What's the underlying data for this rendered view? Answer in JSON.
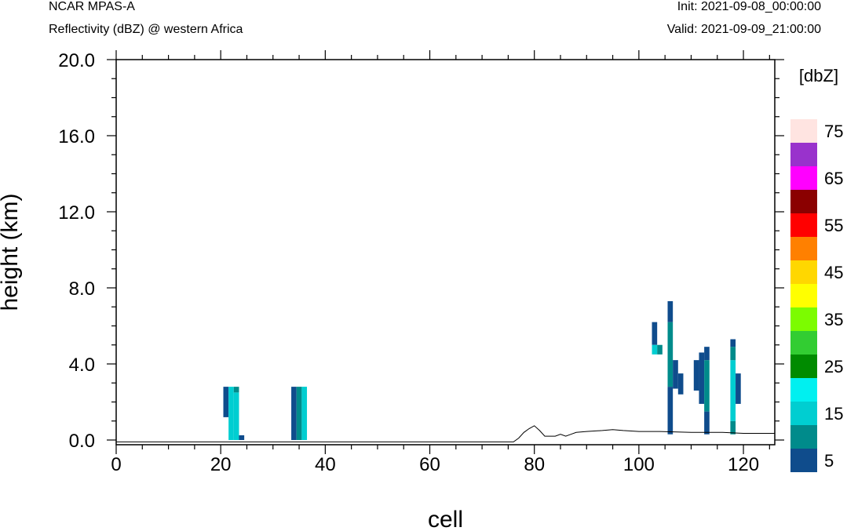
{
  "header": {
    "left_title": "NCAR MPAS-A",
    "left_subtitle": "Reflectivity (dBZ) @ western Africa",
    "right_init": "Init: 2021-09-08_00:00:00",
    "right_valid": "Valid: 2021-09-09_21:00:00"
  },
  "chart_data": {
    "type": "heatmap",
    "xlabel": "cell",
    "ylabel": "height (km)",
    "xlim": [
      0,
      126
    ],
    "ylim": [
      0,
      20
    ],
    "x_ticks": [
      0,
      20,
      40,
      60,
      80,
      100,
      120
    ],
    "y_ticks": [
      "0.0",
      "4.0",
      "8.0",
      "12.0",
      "16.0",
      "20.0"
    ],
    "colorbar": {
      "title": "[dbZ]",
      "levels": [
        5,
        10,
        15,
        20,
        25,
        30,
        35,
        40,
        45,
        50,
        55,
        60,
        65,
        70,
        75
      ],
      "labels": [
        "5",
        "15",
        "25",
        "35",
        "45",
        "55",
        "65",
        "75"
      ],
      "colors": [
        "#0f4c8c",
        "#008b8b",
        "#00ced1",
        "#00f0f0",
        "#008b00",
        "#32cd32",
        "#7cfc00",
        "#ffff00",
        "#ffd700",
        "#ff8000",
        "#ff0000",
        "#8b0000",
        "#ff00ff",
        "#9932cc",
        "#ffe4e1"
      ]
    },
    "cells": [
      {
        "x": 21,
        "y0": 1.2,
        "y1": 2.8,
        "v": 5
      },
      {
        "x": 22,
        "y0": 0.0,
        "y1": 2.8,
        "v": 15
      },
      {
        "x": 23,
        "y0": 0.0,
        "y1": 2.5,
        "v": 15
      },
      {
        "x": 23,
        "y0": 2.5,
        "y1": 2.8,
        "v": 10
      },
      {
        "x": 24,
        "y0": 0.0,
        "y1": 0.25,
        "v": 5
      },
      {
        "x": 34,
        "y0": 0.0,
        "y1": 2.8,
        "v": 5
      },
      {
        "x": 35,
        "y0": 0.0,
        "y1": 2.8,
        "v": 10
      },
      {
        "x": 36,
        "y0": 0.0,
        "y1": 2.8,
        "v": 15
      },
      {
        "x": 103,
        "y0": 5.0,
        "y1": 6.2,
        "v": 5
      },
      {
        "x": 103,
        "y0": 4.5,
        "y1": 5.0,
        "v": 15
      },
      {
        "x": 104,
        "y0": 4.5,
        "y1": 5.0,
        "v": 10
      },
      {
        "x": 106,
        "y0": 0.3,
        "y1": 2.8,
        "v": 5
      },
      {
        "x": 106,
        "y0": 2.8,
        "y1": 6.2,
        "v": 10
      },
      {
        "x": 106,
        "y0": 6.2,
        "y1": 7.3,
        "v": 5
      },
      {
        "x": 107,
        "y0": 2.7,
        "y1": 4.2,
        "v": 5
      },
      {
        "x": 108,
        "y0": 2.4,
        "y1": 3.5,
        "v": 5
      },
      {
        "x": 111,
        "y0": 2.6,
        "y1": 4.2,
        "v": 5
      },
      {
        "x": 112,
        "y0": 1.9,
        "y1": 4.6,
        "v": 5
      },
      {
        "x": 113,
        "y0": 0.3,
        "y1": 1.5,
        "v": 5
      },
      {
        "x": 113,
        "y0": 1.5,
        "y1": 4.2,
        "v": 10
      },
      {
        "x": 113,
        "y0": 4.2,
        "y1": 4.9,
        "v": 5
      },
      {
        "x": 118,
        "y0": 0.3,
        "y1": 1.0,
        "v": 10
      },
      {
        "x": 118,
        "y0": 1.0,
        "y1": 4.2,
        "v": 15
      },
      {
        "x": 118,
        "y0": 4.2,
        "y1": 4.9,
        "v": 10
      },
      {
        "x": 118,
        "y0": 4.9,
        "y1": 5.3,
        "v": 5
      },
      {
        "x": 119,
        "y0": 1.9,
        "y1": 3.5,
        "v": 5
      }
    ],
    "terrain": [
      [
        0,
        -0.1
      ],
      [
        76,
        -0.1
      ],
      [
        77,
        0.1
      ],
      [
        78,
        0.4
      ],
      [
        79,
        0.6
      ],
      [
        80,
        0.75
      ],
      [
        81,
        0.5
      ],
      [
        82,
        0.2
      ],
      [
        83,
        0.2
      ],
      [
        84,
        0.2
      ],
      [
        85,
        0.3
      ],
      [
        86,
        0.2
      ],
      [
        87,
        0.3
      ],
      [
        88,
        0.4
      ],
      [
        90,
        0.45
      ],
      [
        93,
        0.5
      ],
      [
        95,
        0.55
      ],
      [
        97,
        0.5
      ],
      [
        100,
        0.45
      ],
      [
        104,
        0.45
      ],
      [
        110,
        0.4
      ],
      [
        116,
        0.4
      ],
      [
        120,
        0.35
      ],
      [
        126,
        0.35
      ]
    ]
  }
}
